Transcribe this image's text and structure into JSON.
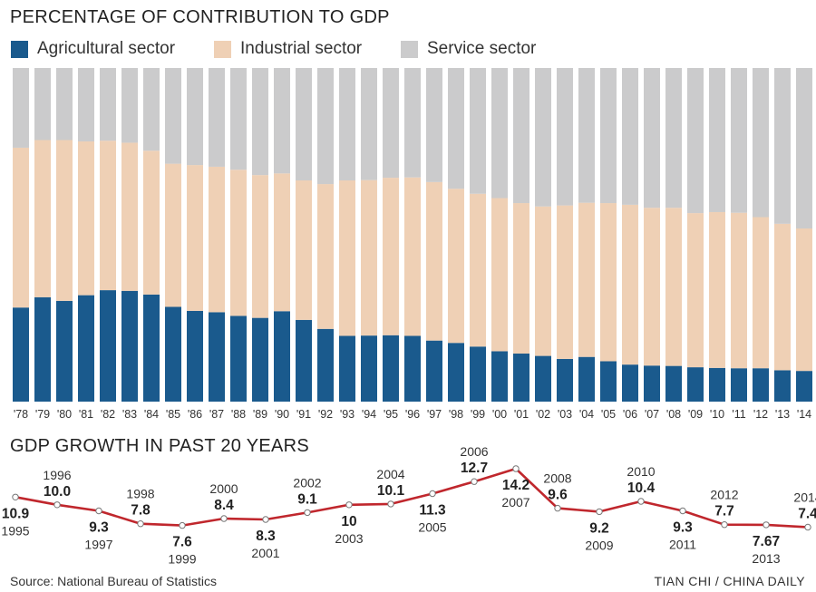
{
  "titles": {
    "top": "PERCENTAGE OF CONTRIBUTION TO GDP",
    "bottom": "GDP GROWTH IN PAST 20 YEARS"
  },
  "footer": {
    "source": "Source: National Bureau of Statistics",
    "credit": "TIAN CHI / CHINA DAILY"
  },
  "colors": {
    "agricultural": "#1a5a8d",
    "industrial": "#efd0b5",
    "service": "#cbcbcc",
    "growth_line": "#c0272d"
  },
  "chart_data": [
    {
      "type": "bar",
      "stacked": true,
      "title": "PERCENTAGE OF CONTRIBUTION TO GDP",
      "ylim": [
        0,
        100
      ],
      "legend": "top-left",
      "categories": [
        "'78",
        "'79",
        "'80",
        "'81",
        "'82",
        "'83",
        "'84",
        "'85",
        "'86",
        "'87",
        "'88",
        "'89",
        "'90",
        "'91",
        "'92",
        "'93",
        "'94",
        "'95",
        "'96",
        "'97",
        "'98",
        "'99",
        "'00",
        "'01",
        "'02",
        "'03",
        "'04",
        "'05",
        "'06",
        "'07",
        "'08",
        "'09",
        "'10",
        "'11",
        "'12",
        "'13",
        "'14"
      ],
      "series": [
        {
          "name": "Agricultural sector",
          "values": [
            28.2,
            31.3,
            30.2,
            31.9,
            33.4,
            33.2,
            32.1,
            28.4,
            27.2,
            26.8,
            25.7,
            25.1,
            27.1,
            24.5,
            21.8,
            19.7,
            19.8,
            19.9,
            19.7,
            18.3,
            17.6,
            16.5,
            15.1,
            14.4,
            13.7,
            12.8,
            13.4,
            12.1,
            11.1,
            10.8,
            10.7,
            10.3,
            10.1,
            10.0,
            10.0,
            9.4,
            9.2
          ]
        },
        {
          "name": "Industrial sector",
          "values": [
            47.9,
            47.1,
            48.2,
            46.1,
            44.8,
            44.4,
            43.1,
            42.9,
            43.7,
            43.6,
            43.8,
            42.8,
            41.3,
            41.8,
            43.4,
            46.6,
            46.6,
            47.2,
            47.5,
            47.5,
            46.2,
            45.8,
            45.9,
            45.1,
            44.8,
            46.0,
            46.2,
            47.4,
            47.9,
            47.3,
            47.4,
            46.2,
            46.7,
            46.6,
            45.3,
            43.9,
            42.7
          ]
        },
        {
          "name": "Service sector",
          "values": [
            23.9,
            21.6,
            21.6,
            22.0,
            21.8,
            22.4,
            24.8,
            28.7,
            29.1,
            29.6,
            30.5,
            32.1,
            31.6,
            33.7,
            34.8,
            33.7,
            33.6,
            32.9,
            32.8,
            34.2,
            36.2,
            37.7,
            39.0,
            40.5,
            41.5,
            41.2,
            40.4,
            40.5,
            41.0,
            41.9,
            41.9,
            43.5,
            43.2,
            43.4,
            44.7,
            46.7,
            48.1
          ]
        }
      ]
    },
    {
      "type": "line",
      "title": "GDP GROWTH IN PAST 20 YEARS",
      "x": [
        "1995",
        "1996",
        "1997",
        "1998",
        "1999",
        "2000",
        "2001",
        "2002",
        "2003",
        "2004",
        "2005",
        "2006",
        "2007",
        "2008",
        "2009",
        "2010",
        "2011",
        "2012",
        "2013",
        "2014"
      ],
      "values": [
        10.9,
        10.0,
        9.3,
        7.8,
        7.6,
        8.4,
        8.3,
        9.1,
        10,
        10.1,
        11.3,
        12.7,
        14.2,
        9.6,
        9.2,
        10.4,
        9.3,
        7.7,
        7.67,
        7.4
      ],
      "value_labels": [
        "10.9",
        "10.0",
        "9.3",
        "7.8",
        "7.6",
        "8.4",
        "8.3",
        "9.1",
        "10",
        "10.1",
        "11.3",
        "12.7",
        "14.2",
        "9.6",
        "9.2",
        "10.4",
        "9.3",
        "7.7",
        "7.67",
        "7.4"
      ],
      "label_positions": [
        "below",
        "above",
        "below",
        "above",
        "below",
        "above",
        "below",
        "above",
        "below",
        "above",
        "below",
        "above",
        "below",
        "above",
        "below",
        "above",
        "below",
        "above",
        "below",
        "above"
      ]
    }
  ]
}
